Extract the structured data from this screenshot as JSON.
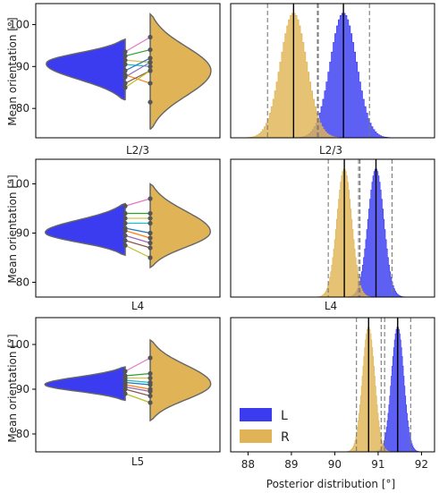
{
  "colors": {
    "L": "#3b3cf0",
    "R": "#e0b456",
    "edge": "#666666",
    "frame": "#000000",
    "dashed": "#7a7a7a"
  },
  "legend": {
    "items": [
      {
        "label": "L",
        "color": "#3b3cf0"
      },
      {
        "label": "R",
        "color": "#e0b456"
      }
    ],
    "placement": "lower-left"
  },
  "chart_data": [
    {
      "type": "violin",
      "panel": "left",
      "group": "L2/3",
      "xlabel": "L2/3",
      "ylabel": "Mean orientation [°]",
      "ylim": [
        73,
        105
      ],
      "yticks": [
        80,
        90,
        100
      ],
      "violin_L": {
        "min": 82,
        "max": 96.5,
        "peak": 91
      },
      "violin_R": {
        "min": 75,
        "max": 102.5,
        "peak": 89
      },
      "pairs": [
        [
          93.5,
          97
        ],
        [
          92.5,
          94
        ],
        [
          91.5,
          91
        ],
        [
          90.5,
          90
        ],
        [
          89,
          92
        ],
        [
          88,
          86
        ],
        [
          87.5,
          91
        ],
        [
          86,
          89
        ],
        [
          85,
          89
        ]
      ],
      "extra_R_points": [
        81.5
      ]
    },
    {
      "type": "violin",
      "panel": "left",
      "group": "L4",
      "xlabel": "L4",
      "ylabel": "Mean orientation [°]",
      "ylim": [
        77,
        105
      ],
      "yticks": [
        80,
        90,
        100
      ],
      "violin_L": {
        "min": 85.5,
        "max": 96,
        "peak": 90
      },
      "violin_R": {
        "min": 83,
        "max": 100,
        "peak": 90
      },
      "pairs": [
        [
          95.5,
          97
        ],
        [
          94,
          94
        ],
        [
          93,
          93
        ],
        [
          92,
          92
        ],
        [
          91,
          90
        ],
        [
          90.5,
          89
        ],
        [
          89.5,
          88
        ],
        [
          88.5,
          87
        ],
        [
          87.5,
          85
        ]
      ],
      "extra_R_points": []
    },
    {
      "type": "violin",
      "panel": "left",
      "group": "L5",
      "xlabel": "L5",
      "ylabel": "Mean orientation [°]",
      "ylim": [
        76,
        106
      ],
      "yticks": [
        80,
        90,
        100
      ],
      "violin_L": {
        "min": 87.5,
        "max": 95,
        "peak": 91
      },
      "violin_R": {
        "min": 83,
        "max": 101,
        "peak": 91
      },
      "pairs": [
        [
          94,
          97
        ],
        [
          93,
          93.5
        ],
        [
          92.5,
          92.5
        ],
        [
          92,
          91.5
        ],
        [
          91.5,
          91
        ],
        [
          91,
          90
        ],
        [
          90.5,
          89.5
        ],
        [
          90,
          88.5
        ],
        [
          89,
          87
        ]
      ],
      "extra_R_points": []
    },
    {
      "type": "histogram",
      "panel": "right",
      "group": "L2/3",
      "xlabel": "L2/3",
      "xlim": [
        87.6,
        92.3
      ],
      "series": [
        {
          "name": "L",
          "mean": 90.2,
          "sd": 0.3,
          "hdi": [
            89.62,
            90.8
          ]
        },
        {
          "name": "R",
          "mean": 89.05,
          "sd": 0.3,
          "hdi": [
            88.45,
            89.6
          ]
        }
      ]
    },
    {
      "type": "histogram",
      "panel": "right",
      "group": "L4",
      "xlabel": "L4",
      "xlim": [
        87.6,
        92.3
      ],
      "series": [
        {
          "name": "L",
          "mean": 90.95,
          "sd": 0.18,
          "hdi": [
            90.55,
            91.32
          ]
        },
        {
          "name": "R",
          "mean": 90.22,
          "sd": 0.17,
          "hdi": [
            89.85,
            90.58
          ]
        }
      ]
    },
    {
      "type": "histogram",
      "panel": "right",
      "group": "L5",
      "xlabel": "Posterior distribution [°]",
      "xlim": [
        87.6,
        92.3
      ],
      "xticks": [
        88,
        89,
        90,
        91,
        92
      ],
      "series": [
        {
          "name": "L",
          "mean": 91.45,
          "sd": 0.14,
          "hdi": [
            91.15,
            91.75
          ]
        },
        {
          "name": "R",
          "mean": 90.78,
          "sd": 0.14,
          "hdi": [
            90.5,
            91.07
          ]
        }
      ]
    }
  ]
}
